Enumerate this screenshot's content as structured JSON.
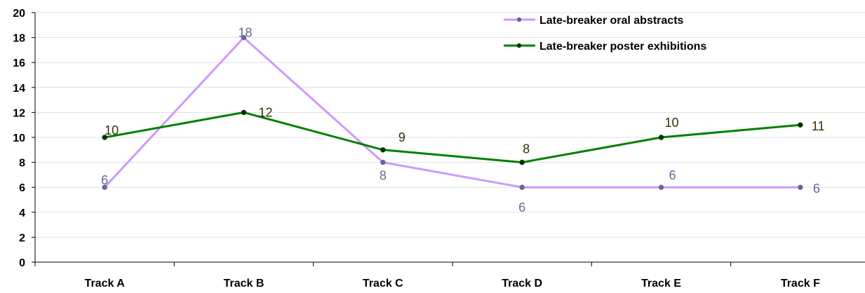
{
  "chart_data": {
    "type": "line",
    "categories": [
      "Track A",
      "Track B",
      "Track C",
      "Track D",
      "Track E",
      "Track F"
    ],
    "series": [
      {
        "name": "Late-breaker oral abstracts",
        "values": [
          6,
          18,
          8,
          6,
          6,
          6
        ],
        "color": "#CC99FF",
        "marker_color": "#666699",
        "label_color": "#666699"
      },
      {
        "name": "Late-breaker poster exhibitions",
        "values": [
          10,
          12,
          9,
          8,
          10,
          11
        ],
        "color": "#008000",
        "marker_color": "#003300",
        "label_color": "#333300"
      }
    ],
    "ylim": [
      0,
      20
    ],
    "yticks": [
      0,
      2,
      4,
      6,
      8,
      10,
      12,
      14,
      16,
      18,
      20
    ],
    "grid": true,
    "legend_position": "top-right",
    "title": "",
    "xlabel": "",
    "ylabel": ""
  }
}
